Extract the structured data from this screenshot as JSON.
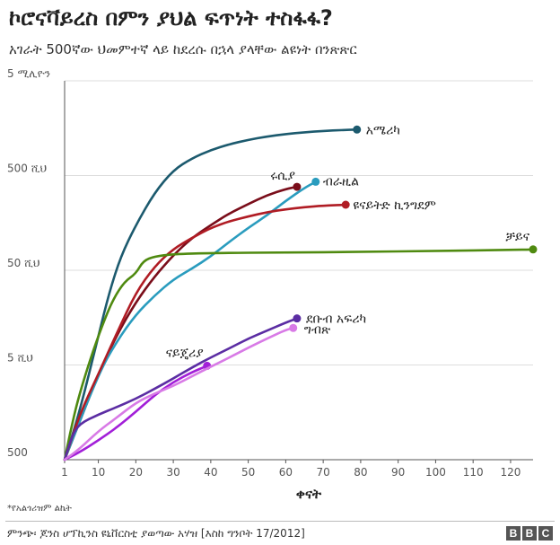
{
  "title": "ኮሮናቫይረስ በምን ያህል ፍጥነት ተስፋፋ?",
  "subtitle": "አገራት 500ኛው ህመምተኛ ላይ ከደረሱ በኋላ ያላቸው ልዩነት በንጽጽር",
  "footnote": "*የአልጎሪዝም ልኬት",
  "source": "ምንጭ፡ ጆንስ ሆፕኪንስ ዩኒቨርስቲ ያወጣው አሃዝ [እስከ ግንቦት 17/2012]",
  "brand": [
    "B",
    "B",
    "C"
  ],
  "chart_data": {
    "type": "line",
    "title": "ኮሮናቫይረስ በምን ያህል ፍጥነት ተስፋፋ?",
    "subtitle": "አገራት 500ኛው ህመምተኛ ላይ ከደረሱ በኋላ ያላቸው ልዩነት በንጽጽር",
    "xlabel": "ቀናት",
    "ylabel": "",
    "y_scale": "log",
    "xlim": [
      1,
      126
    ],
    "ylim": [
      500,
      5000000
    ],
    "grid": true,
    "legend": "inline labels at line ends",
    "x_ticks": [
      {
        "value": 1,
        "label": "1"
      },
      {
        "value": 10,
        "label": "10"
      },
      {
        "value": 20,
        "label": "20"
      },
      {
        "value": 30,
        "label": "30"
      },
      {
        "value": 40,
        "label": "40"
      },
      {
        "value": 50,
        "label": "50"
      },
      {
        "value": 60,
        "label": "60"
      },
      {
        "value": 70,
        "label": "70"
      },
      {
        "value": 80,
        "label": "80"
      },
      {
        "value": 90,
        "label": "90"
      },
      {
        "value": 100,
        "label": "100"
      },
      {
        "value": 110,
        "label": "110"
      },
      {
        "value": 120,
        "label": "120"
      }
    ],
    "y_ticks": [
      {
        "value": 500,
        "label": "500"
      },
      {
        "value": 5000,
        "label": "5 ሺህ"
      },
      {
        "value": 50000,
        "label": "50 ሺህ"
      },
      {
        "value": 500000,
        "label": "500 ሺህ"
      },
      {
        "value": 5000000,
        "label": "5 ሚሊዮን"
      }
    ],
    "series": [
      {
        "name": "አሜሪካ",
        "color": "#1c5a6e",
        "x": [
          1,
          5,
          10,
          13,
          16,
          20,
          25,
          30,
          35,
          40,
          45,
          50,
          55,
          60,
          65,
          70,
          75,
          79
        ],
        "y": [
          500,
          1600,
          10000,
          30000,
          70000,
          150000,
          330000,
          570000,
          760000,
          930000,
          1070000,
          1190000,
          1290000,
          1370000,
          1430000,
          1480000,
          1510000,
          1530000
        ]
      },
      {
        "name": "ሩሲያ",
        "color": "#7a0d1a",
        "x": [
          1,
          10,
          15,
          20,
          25,
          30,
          35,
          40,
          45,
          50,
          55,
          60,
          63
        ],
        "y": [
          500,
          4000,
          10500,
          23000,
          43000,
          72000,
          110000,
          150000,
          200000,
          250000,
          310000,
          360000,
          380000
        ]
      },
      {
        "name": "ብራዚል",
        "color": "#2a9cbe",
        "x": [
          1,
          10,
          15,
          20,
          25,
          30,
          35,
          40,
          45,
          50,
          55,
          60,
          65,
          68
        ],
        "y": [
          500,
          4000,
          9000,
          17000,
          27000,
          40000,
          52000,
          70000,
          100000,
          140000,
          190000,
          270000,
          370000,
          430000
        ]
      },
      {
        "name": "ዩናይትድ ኪንግደም",
        "color": "#b01c24",
        "x": [
          1,
          5,
          10,
          15,
          20,
          25,
          30,
          35,
          40,
          45,
          50,
          55,
          60,
          65,
          70,
          76
        ],
        "y": [
          500,
          1500,
          4000,
          11000,
          29000,
          55000,
          84000,
          110000,
          140000,
          165000,
          185000,
          205000,
          220000,
          232000,
          240000,
          246000
        ]
      },
      {
        "name": "ቻይና",
        "color": "#4f8a10",
        "x": [
          1,
          3,
          5,
          8,
          11,
          14,
          17,
          20,
          22,
          25,
          30,
          40,
          60,
          80,
          100,
          120,
          126
        ],
        "y": [
          500,
          1200,
          2500,
          6000,
          13000,
          25000,
          38000,
          46000,
          63000,
          70000,
          74000,
          76000,
          77000,
          78000,
          80000,
          82000,
          83000
        ]
      },
      {
        "name": "ደቡብ አፍሪካ",
        "color": "#5b2da3",
        "x": [
          1,
          3,
          5,
          10,
          15,
          20,
          25,
          30,
          35,
          40,
          45,
          50,
          55,
          60,
          63
        ],
        "y": [
          500,
          900,
          1200,
          1500,
          1800,
          2200,
          2800,
          3600,
          4700,
          6000,
          7500,
          9500,
          11500,
          14000,
          15500
        ]
      },
      {
        "name": "ናይጄሪያ",
        "color": "#a21fd8",
        "x": [
          1,
          5,
          10,
          15,
          20,
          25,
          30,
          35,
          39
        ],
        "y": [
          500,
          600,
          800,
          1100,
          1600,
          2400,
          3300,
          4200,
          4900
        ]
      },
      {
        "name": "ግብጽ",
        "color": "#d87ae6",
        "x": [
          1,
          5,
          10,
          15,
          20,
          25,
          30,
          35,
          40,
          45,
          50,
          55,
          60,
          62
        ],
        "y": [
          500,
          650,
          1000,
          1400,
          2000,
          2500,
          3000,
          3800,
          4800,
          6000,
          7600,
          9500,
          11700,
          12300
        ]
      }
    ]
  }
}
